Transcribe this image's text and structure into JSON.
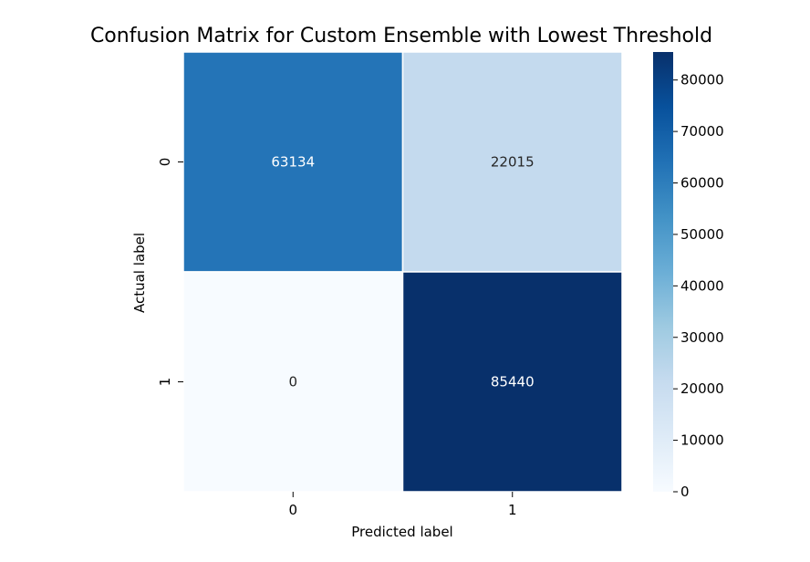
{
  "chart_data": {
    "type": "heatmap",
    "title": "Confusion Matrix for Custom Ensemble with Lowest Threshold",
    "xlabel": "Predicted label",
    "ylabel": "Actual label",
    "x_categories": [
      "0",
      "1"
    ],
    "y_categories": [
      "0",
      "1"
    ],
    "values": [
      [
        63134,
        22015
      ],
      [
        0,
        85440
      ]
    ],
    "colormap": "Blues",
    "colorbar": {
      "min": 0,
      "max": 85440,
      "ticks": [
        "0",
        "10000",
        "20000",
        "30000",
        "40000",
        "50000",
        "60000",
        "70000",
        "80000"
      ]
    },
    "grid": true,
    "cell_separator_color": "#ffffff"
  }
}
